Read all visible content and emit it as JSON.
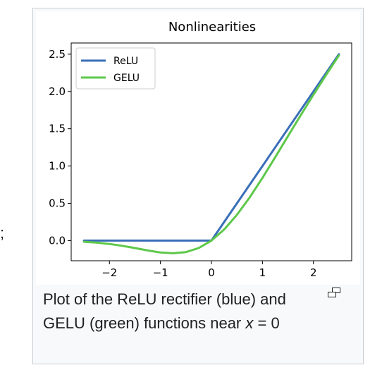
{
  "page": {
    "stray_text": ";"
  },
  "caption": {
    "text_before": "Plot of the ReLU rectifier (blue) and GELU (green) functions near ",
    "variable": "x",
    "text_after": " = 0"
  },
  "icons": {
    "magnify": "magnify-icon"
  },
  "colors": {
    "relu": "#3a6fb8",
    "gelu": "#5ec84a",
    "frame_border": "#c8ccd1",
    "frame_bg": "#f8f9fa"
  },
  "chart_data": {
    "type": "line",
    "title": "Nonlinearities",
    "xlabel": "",
    "ylabel": "",
    "xlim": [
      -2.75,
      2.75
    ],
    "ylim": [
      -0.27,
      2.65
    ],
    "xticks": [
      -2,
      -1,
      0,
      1,
      2
    ],
    "xtick_labels": [
      "−2",
      "−1",
      "0",
      "1",
      "2"
    ],
    "yticks": [
      0.0,
      0.5,
      1.0,
      1.5,
      2.0,
      2.5
    ],
    "ytick_labels": [
      "0.0",
      "0.5",
      "1.0",
      "1.5",
      "2.0",
      "2.5"
    ],
    "legend_position": "top-left",
    "series": [
      {
        "name": "ReLU",
        "color": "#3a6fb8",
        "x": [
          -2.5,
          -2.0,
          -1.5,
          -1.0,
          -0.5,
          0.0,
          0.5,
          1.0,
          1.5,
          2.0,
          2.5
        ],
        "y": [
          0.0,
          0.0,
          0.0,
          0.0,
          0.0,
          0.0,
          0.5,
          1.0,
          1.5,
          2.0,
          2.5
        ]
      },
      {
        "name": "GELU",
        "color": "#5ec84a",
        "x": [
          -2.5,
          -2.25,
          -2.0,
          -1.75,
          -1.5,
          -1.25,
          -1.0,
          -0.75,
          -0.5,
          -0.25,
          0.0,
          0.25,
          0.5,
          0.75,
          1.0,
          1.25,
          1.5,
          1.75,
          2.0,
          2.25,
          2.5
        ],
        "y": [
          -0.016,
          -0.027,
          -0.045,
          -0.07,
          -0.1,
          -0.132,
          -0.159,
          -0.17,
          -0.154,
          -0.1,
          0.0,
          0.15,
          0.346,
          0.58,
          0.841,
          1.118,
          1.4,
          1.68,
          1.955,
          2.223,
          2.484
        ]
      }
    ]
  }
}
